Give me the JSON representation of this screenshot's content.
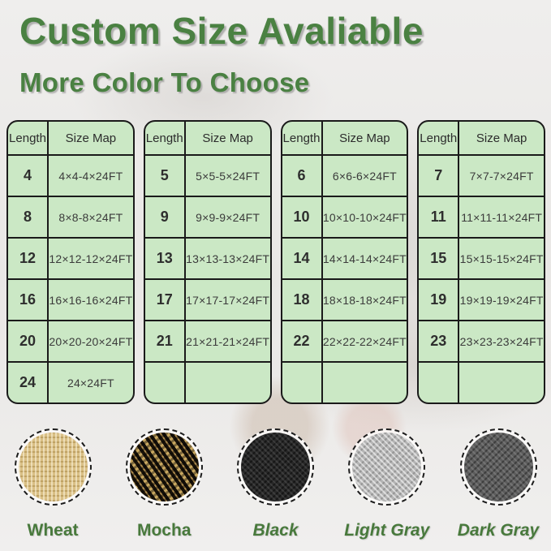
{
  "page": {
    "title": "Custom Size Avaliable",
    "subtitle": "More Color To Choose",
    "title_color": "#4a8142",
    "table_background_color": "#cbe8c5",
    "table_border_color": "#1a1a1a",
    "label_color": "#48793c"
  },
  "table_header": {
    "length": "Length",
    "size_map": "Size Map"
  },
  "tables": [
    {
      "rows": [
        {
          "length": "4",
          "size": "4×4-4×24FT"
        },
        {
          "length": "8",
          "size": "8×8-8×24FT"
        },
        {
          "length": "12",
          "size": "12×12-12×24FT"
        },
        {
          "length": "16",
          "size": "16×16-16×24FT"
        },
        {
          "length": "20",
          "size": "20×20-20×24FT"
        },
        {
          "length": "24",
          "size": "24×24FT"
        }
      ]
    },
    {
      "rows": [
        {
          "length": "5",
          "size": "5×5-5×24FT"
        },
        {
          "length": "9",
          "size": "9×9-9×24FT"
        },
        {
          "length": "13",
          "size": "13×13-13×24FT"
        },
        {
          "length": "17",
          "size": "17×17-17×24FT"
        },
        {
          "length": "21",
          "size": "21×21-21×24FT"
        },
        {
          "length": "",
          "size": ""
        }
      ]
    },
    {
      "rows": [
        {
          "length": "6",
          "size": "6×6-6×24FT"
        },
        {
          "length": "10",
          "size": "10×10-10×24FT"
        },
        {
          "length": "14",
          "size": "14×14-14×24FT"
        },
        {
          "length": "18",
          "size": "18×18-18×24FT"
        },
        {
          "length": "22",
          "size": "22×22-22×24FT"
        },
        {
          "length": "",
          "size": ""
        }
      ]
    },
    {
      "rows": [
        {
          "length": "7",
          "size": "7×7-7×24FT"
        },
        {
          "length": "11",
          "size": "11×11-11×24FT"
        },
        {
          "length": "15",
          "size": "15×15-15×24FT"
        },
        {
          "length": "19",
          "size": "19×19-19×24FT"
        },
        {
          "length": "23",
          "size": "23×23-23×24FT"
        },
        {
          "length": "",
          "size": ""
        }
      ]
    }
  ],
  "swatches": [
    {
      "id": "wheat",
      "label": "Wheat",
      "italic": false,
      "color": "#d9bf85"
    },
    {
      "id": "mocha",
      "label": "Mocha",
      "italic": false,
      "color": "#8a6a3a"
    },
    {
      "id": "black",
      "label": "Black",
      "italic": true,
      "color": "#272727"
    },
    {
      "id": "light-gray",
      "label": "Light Gray",
      "italic": true,
      "color": "#b5b5b5"
    },
    {
      "id": "dark-gray",
      "label": "Dark Gray",
      "italic": true,
      "color": "#5c5c5c"
    }
  ]
}
